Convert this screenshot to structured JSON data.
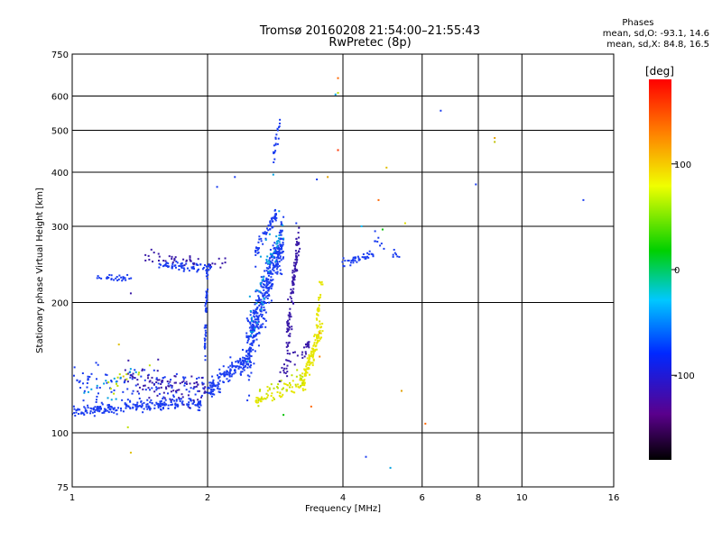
{
  "header": {
    "title_line1": "Tromsø 20160208 21:54:00–21:55:43",
    "title_line2": "RwPretec (8p)"
  },
  "phase_info": {
    "title": "Phases",
    "line_o": "mean, sd,O: -93.1, 14.6",
    "line_x": "mean, sd,X:  84.8, 16.5"
  },
  "colorbar": {
    "label": "[deg]",
    "ticks": [
      {
        "value": 100,
        "label": "100"
      },
      {
        "value": 0,
        "label": "0"
      },
      {
        "value": -100,
        "label": "-100"
      }
    ],
    "range": [
      -180,
      180
    ]
  },
  "chart_data": {
    "type": "scatter",
    "title": "Tromsø 20160208 21:54:00–21:55:43",
    "subtitle": "RwPretec (8p)",
    "xlabel": "Frequency [MHz]",
    "ylabel": "Stationary phase Virtual Height [km]",
    "x_scale": "log",
    "y_scale": "log",
    "xlim": [
      1,
      16
    ],
    "ylim": [
      75,
      750
    ],
    "x_ticks": [
      1,
      2,
      4,
      6,
      8,
      10,
      16
    ],
    "y_ticks": [
      75,
      100,
      200,
      300,
      400,
      500,
      600,
      750
    ],
    "grid": true,
    "series": [
      {
        "color": "#1a3cf0",
        "segments": [
          {
            "x0": 1.0,
            "x1": 1.95,
            "y0": 112,
            "y1": 118,
            "n": 220,
            "sy": 3
          },
          {
            "x0": 1.0,
            "x1": 2.0,
            "y0": 130,
            "y1": 125,
            "n": 120,
            "sy": 12
          },
          {
            "x0": 1.12,
            "x1": 1.35,
            "y0": 228,
            "y1": 228,
            "n": 30,
            "sy": 4
          },
          {
            "x0": 1.55,
            "x1": 2.05,
            "y0": 244,
            "y1": 240,
            "n": 70,
            "sy": 6
          },
          {
            "x0": 1.97,
            "x1": 2.0,
            "y0": 150,
            "y1": 240,
            "n": 50,
            "sy": 4
          },
          {
            "x0": 2.0,
            "x1": 2.5,
            "y0": 125,
            "y1": 150,
            "n": 160,
            "sy": 8
          },
          {
            "x0": 2.45,
            "x1": 2.95,
            "y0": 150,
            "y1": 280,
            "n": 380,
            "sy": 30
          },
          {
            "x0": 2.55,
            "x1": 2.85,
            "y0": 260,
            "y1": 320,
            "n": 60,
            "sy": 12
          },
          {
            "x0": 2.8,
            "x1": 2.9,
            "y0": 440,
            "y1": 520,
            "n": 20,
            "sy": 25
          },
          {
            "x0": 3.95,
            "x1": 4.7,
            "y0": 245,
            "y1": 260,
            "n": 40,
            "sy": 6
          },
          {
            "x0": 4.7,
            "x1": 5.4,
            "y0": 280,
            "y1": 250,
            "n": 15,
            "sy": 8
          }
        ]
      },
      {
        "color": "#3a1aa8",
        "segments": [
          {
            "x0": 1.3,
            "x1": 2.0,
            "y0": 135,
            "y1": 125,
            "n": 90,
            "sy": 10
          },
          {
            "x0": 3.0,
            "x1": 3.2,
            "y0": 160,
            "y1": 280,
            "n": 120,
            "sy": 20
          },
          {
            "x0": 1.45,
            "x1": 2.2,
            "y0": 255,
            "y1": 245,
            "n": 40,
            "sy": 8
          },
          {
            "x0": 2.9,
            "x1": 3.4,
            "y0": 135,
            "y1": 165,
            "n": 40,
            "sy": 10
          }
        ]
      },
      {
        "color": "#e6e600",
        "segments": [
          {
            "x0": 2.55,
            "x1": 3.3,
            "y0": 118,
            "y1": 130,
            "n": 60,
            "sy": 5
          },
          {
            "x0": 3.25,
            "x1": 3.6,
            "y0": 130,
            "y1": 175,
            "n": 110,
            "sy": 10
          },
          {
            "x0": 3.5,
            "x1": 3.6,
            "y0": 180,
            "y1": 230,
            "n": 30,
            "sy": 10
          }
        ]
      },
      {
        "color": "#bde000",
        "segments": [
          {
            "x0": 2.6,
            "x1": 3.3,
            "y0": 120,
            "y1": 135,
            "n": 30,
            "sy": 6
          },
          {
            "x0": 1.2,
            "x1": 1.5,
            "y0": 128,
            "y1": 138,
            "n": 12,
            "sy": 8
          }
        ]
      },
      {
        "color": "#00a0e0",
        "segments": [
          {
            "x0": 2.45,
            "x1": 2.95,
            "y0": 170,
            "y1": 300,
            "n": 50,
            "sy": 30
          },
          {
            "x0": 1.05,
            "x1": 1.5,
            "y0": 120,
            "y1": 140,
            "n": 15,
            "sy": 8
          }
        ]
      }
    ],
    "scatter_points": [
      {
        "x": 3.9,
        "y": 660,
        "color": "#ff6600"
      },
      {
        "x": 3.85,
        "y": 605,
        "color": "#00a0e0"
      },
      {
        "x": 3.9,
        "y": 610,
        "color": "#c0e000"
      },
      {
        "x": 3.9,
        "y": 450,
        "color": "#ff3300"
      },
      {
        "x": 3.7,
        "y": 390,
        "color": "#e0a000"
      },
      {
        "x": 3.5,
        "y": 385,
        "color": "#1a3cf0"
      },
      {
        "x": 5.0,
        "y": 410,
        "color": "#e0c000"
      },
      {
        "x": 4.8,
        "y": 345,
        "color": "#ff6600"
      },
      {
        "x": 4.4,
        "y": 300,
        "color": "#00c0ff"
      },
      {
        "x": 4.9,
        "y": 295,
        "color": "#00c000"
      },
      {
        "x": 5.5,
        "y": 305,
        "color": "#e0e000"
      },
      {
        "x": 6.6,
        "y": 555,
        "color": "#1a3cf0"
      },
      {
        "x": 7.9,
        "y": 375,
        "color": "#1a3cf0"
      },
      {
        "x": 8.7,
        "y": 480,
        "color": "#e0a000"
      },
      {
        "x": 8.7,
        "y": 470,
        "color": "#c0c000"
      },
      {
        "x": 13.7,
        "y": 345,
        "color": "#1a3cf0"
      },
      {
        "x": 5.4,
        "y": 125,
        "color": "#e0a000"
      },
      {
        "x": 6.1,
        "y": 105,
        "color": "#ff6600"
      },
      {
        "x": 4.5,
        "y": 88,
        "color": "#1a3cf0"
      },
      {
        "x": 5.1,
        "y": 83,
        "color": "#00a0e0"
      },
      {
        "x": 1.35,
        "y": 90,
        "color": "#e0c000"
      },
      {
        "x": 1.33,
        "y": 103,
        "color": "#c0e000"
      },
      {
        "x": 1.27,
        "y": 160,
        "color": "#e0c000"
      },
      {
        "x": 2.95,
        "y": 110,
        "color": "#00c000"
      },
      {
        "x": 2.8,
        "y": 395,
        "color": "#00a0e0"
      },
      {
        "x": 2.3,
        "y": 390,
        "color": "#1a3cf0"
      },
      {
        "x": 2.1,
        "y": 370,
        "color": "#1a3cf0"
      },
      {
        "x": 3.15,
        "y": 305,
        "color": "#1a3cf0"
      },
      {
        "x": 3.4,
        "y": 115,
        "color": "#ff6600"
      },
      {
        "x": 1.3,
        "y": 135,
        "color": "#e0c000"
      },
      {
        "x": 1.5,
        "y": 265,
        "color": "#3a1aa8"
      },
      {
        "x": 1.35,
        "y": 210,
        "color": "#3a1aa8"
      },
      {
        "x": 3.55,
        "y": 150,
        "color": "#ff8800"
      },
      {
        "x": 3.55,
        "y": 170,
        "color": "#ff8800"
      }
    ]
  }
}
